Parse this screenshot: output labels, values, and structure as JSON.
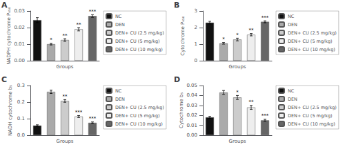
{
  "chart_data": [
    {
      "type": "bar",
      "title": "A",
      "xlabel": "Groups",
      "ylabel": "NADPH cytochrome P₄₅₀",
      "categories": [
        "NC",
        "DEN",
        "DEN+ CU (2.5 mg/kg)",
        "DEN+ CU (5 mg/kg)",
        "DEN+ CU (10 mg/kg)"
      ],
      "values": [
        0.0245,
        0.01,
        0.0125,
        0.019,
        0.027
      ],
      "errors": [
        0.0015,
        0.0005,
        0.0008,
        0.001,
        0.0008
      ],
      "annotations": [
        null,
        "*",
        "**",
        "**",
        "***"
      ],
      "colors": [
        "#111111",
        "#aaaaaa",
        "#cccccc",
        "#eeeeee",
        "#666666"
      ],
      "ylim": [
        0,
        0.03
      ],
      "yticks": [
        {
          "value": 0,
          "label": "0.00"
        },
        0.01,
        0.02,
        0.03
      ],
      "grid": false,
      "legend": "right",
      "tick_labels": "y"
    },
    {
      "type": "bar",
      "title": "B",
      "xlabel": "Groups",
      "ylabel": "Cytochrome P₄₅₀",
      "categories": [
        "NC",
        "DEN",
        "DEN+ CU (2.5 mg/kg)",
        "DEN+ CU (5 mg/kg)",
        "DEN+ CU (10 mg/kg)"
      ],
      "values": [
        2.3,
        1.05,
        1.28,
        1.57,
        2.35
      ],
      "errors": [
        0.08,
        0.05,
        0.08,
        0.07,
        0.06
      ],
      "annotations": [
        null,
        "*",
        "*",
        "**",
        "***"
      ],
      "colors": [
        "#111111",
        "#aaaaaa",
        "#cccccc",
        "#eeeeee",
        "#666666"
      ],
      "ylim": [
        0,
        3
      ],
      "yticks": [
        0,
        1,
        2,
        3
      ],
      "grid": false,
      "legend": "right",
      "tick_labels": "y"
    },
    {
      "type": "bar",
      "title": "C",
      "xlabel": "Groups",
      "ylabel": "NADH cytochrome b₅",
      "categories": [
        "NC",
        "DEN",
        "DEN+ CU (2.5 mg/kg)",
        "DEN+ CU (5 mg/kg)",
        "DEN+ CU (10 mg/kg)"
      ],
      "values": [
        0.058,
        0.262,
        0.207,
        0.113,
        0.075
      ],
      "errors": [
        0.005,
        0.01,
        0.008,
        0.006,
        0.005
      ],
      "annotations": [
        null,
        null,
        "**",
        "***",
        "***"
      ],
      "colors": [
        "#111111",
        "#aaaaaa",
        "#cccccc",
        "#eeeeee",
        "#666666"
      ],
      "ylim": [
        0,
        0.3
      ],
      "yticks": [
        {
          "value": 0,
          "label": "0.0"
        },
        0.1,
        0.2,
        0.3
      ],
      "grid": false,
      "legend": "right",
      "tick_labels": "y"
    },
    {
      "type": "bar",
      "title": "D",
      "xlabel": "Groups",
      "ylabel": "Cytochrome b₅",
      "categories": [
        "NC",
        "DEN",
        "DEN+ CU (2.5 mg/kg)",
        "DEN+ CU (5 mg/kg)",
        "DEN+ CU (10 mg/kg)"
      ],
      "values": [
        0.018,
        0.043,
        0.038,
        0.028,
        0.015
      ],
      "errors": [
        0.001,
        0.002,
        0.002,
        0.002,
        0.001
      ],
      "annotations": [
        null,
        null,
        "*",
        "**",
        "***"
      ],
      "colors": [
        "#111111",
        "#aaaaaa",
        "#cccccc",
        "#eeeeee",
        "#666666"
      ],
      "ylim": [
        0,
        0.05
      ],
      "yticks": [
        {
          "value": 0,
          "label": "0.00"
        },
        0.01,
        0.02,
        0.03,
        0.04,
        0.05
      ],
      "grid": false,
      "legend": "right",
      "tick_labels": "y"
    }
  ]
}
